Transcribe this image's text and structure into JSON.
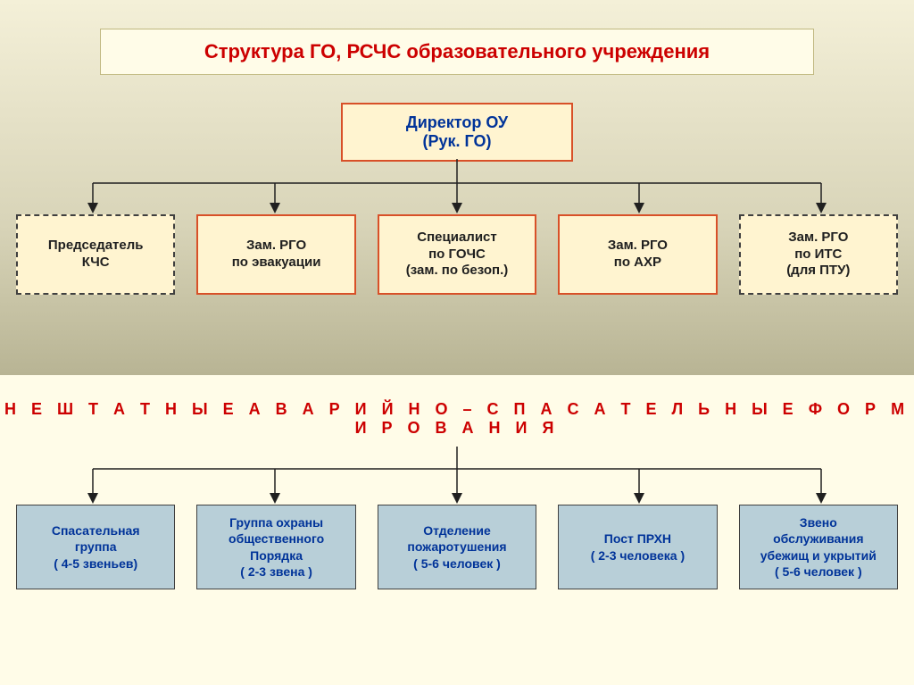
{
  "colors": {
    "title_bg": "#fffce8",
    "title_border": "#c0b880",
    "title_text": "#cc0000",
    "director_bg": "#fff4d0",
    "director_border": "#d85028",
    "director_text": "#003399",
    "node1_bg": "#fff4d0",
    "node1_solid_border": "#d85028",
    "node1_dashed_border": "#404040",
    "node1_text": "#202020",
    "section_title_text": "#cc0000",
    "node2_bg": "#b8cfd8",
    "node2_border": "#404040",
    "node2_text": "#003399",
    "connector": "#202020",
    "arrow": "#202020"
  },
  "title": "Структура ГО, РСЧС образовательного учреждения",
  "director": {
    "line1": "Директор ОУ",
    "line2": "(Рук. ГО)"
  },
  "row1": [
    {
      "text": "Председатель\nКЧС",
      "style": "dashed"
    },
    {
      "text": "Зам. РГО\nпо эвакуации",
      "style": "solid"
    },
    {
      "text": "Специалист\nпо ГОЧС\n(зам. по безоп.)",
      "style": "solid"
    },
    {
      "text": "Зам. РГО\nпо АХР",
      "style": "solid"
    },
    {
      "text": "Зам. РГО\nпо ИТС\n(для ПТУ)",
      "style": "dashed"
    }
  ],
  "section_title": "Н Е Ш Т А Т Н Ы Е   А В А Р И Й Н О – С П А С А Т Е Л Ь Н Ы Е   Ф О Р М И Р О В А Н И Я",
  "row2": [
    "Спасательная\nгруппа\n( 4-5 звеньев)",
    "Группа охраны\nобщественного\nПорядка\n( 2-3 звена )",
    "Отделение\nпожаротушения\n( 5-6 человек )",
    "Пост ПРХН\n( 2-3 человека )",
    "Звено\nобслуживания\nубежищ и укрытий\n( 5-6 человек )"
  ]
}
